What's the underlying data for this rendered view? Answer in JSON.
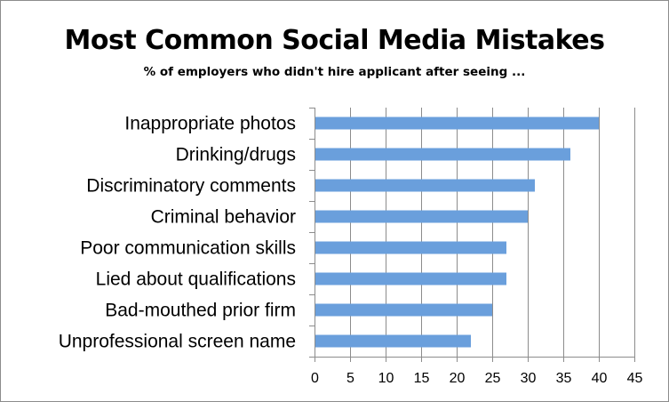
{
  "chart_data": {
    "type": "bar",
    "orientation": "horizontal",
    "title": "Most Common Social Media Mistakes",
    "subtitle": "% of employers who didn't hire applicant after seeing ...",
    "categories": [
      "Inappropriate photos",
      "Drinking/drugs",
      "Discriminatory comments",
      "Criminal behavior",
      "Poor communication skills",
      "Lied about qualifications",
      "Bad-mouthed prior firm",
      "Unprofessional screen name"
    ],
    "values": [
      40,
      36,
      31,
      30,
      27,
      27,
      25,
      22
    ],
    "xlim": [
      0,
      45
    ],
    "xticks": [
      0,
      5,
      10,
      15,
      20,
      25,
      30,
      35,
      40,
      45
    ],
    "grid": "vertical",
    "bar_color": "#6a9fdc",
    "grid_color": "#8c8c8c"
  }
}
